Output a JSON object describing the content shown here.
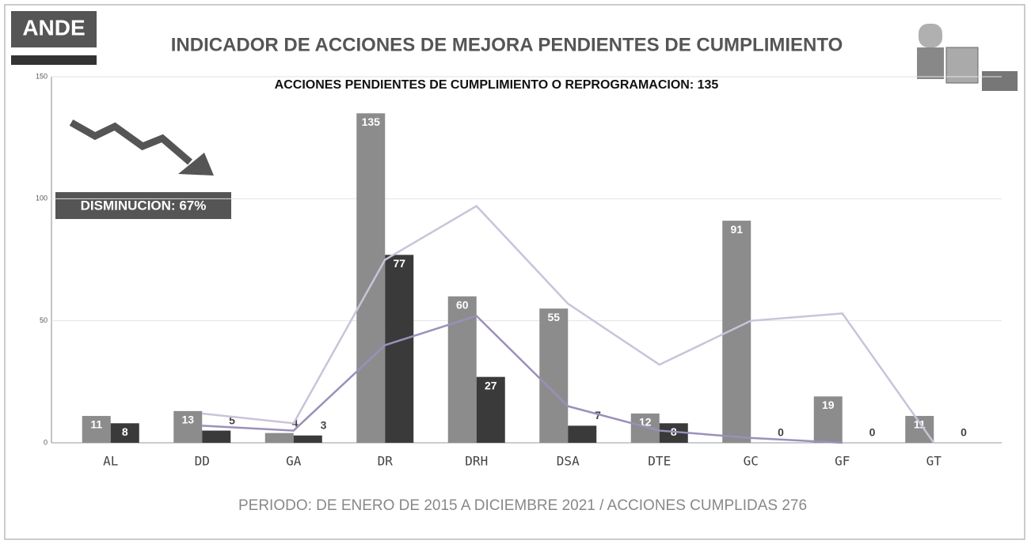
{
  "chart_data": {
    "type": "bar",
    "logo": "ANDE",
    "title": "INDICADOR DE ACCIONES DE MEJORA PENDIENTES DE CUMPLIMIENTO",
    "subtitle": "ACCIONES PENDIENTES DE CUMPLIMIENTO O REPROGRAMACION: 135",
    "annotation": "DISMINUCION: 67%",
    "footer": "PERIODO: DE ENERO DE 2015 A DICIEMBRE 2021 / ACCIONES CUMPLIDAS 276",
    "categories": [
      "AL",
      "DD",
      "GA",
      "DR",
      "DRH",
      "DSA",
      "DTE",
      "GC",
      "GF",
      "GT"
    ],
    "series": [
      {
        "color": "#8c8c8c",
        "values": [
          11,
          13,
          4,
          135,
          60,
          55,
          12,
          91,
          19,
          11
        ]
      },
      {
        "color": "#3a3a3a",
        "values": [
          8,
          5,
          3,
          77,
          27,
          7,
          8,
          0,
          0,
          0
        ]
      }
    ],
    "lines": [
      {
        "color": "#c9c3da",
        "values": [
          null,
          12,
          8,
          75,
          97,
          57,
          32,
          50,
          53,
          0
        ]
      },
      {
        "color": "#9c8fba",
        "values": [
          null,
          7,
          5,
          40,
          52,
          15,
          5,
          2,
          0,
          null
        ]
      }
    ],
    "ylim": [
      0,
      150
    ],
    "yticks": [
      0,
      50,
      100,
      150
    ],
    "grid": true
  }
}
